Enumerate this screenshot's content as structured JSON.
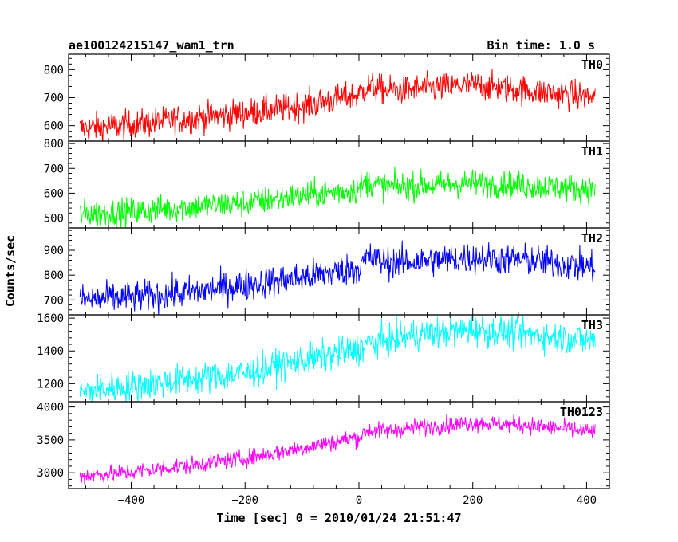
{
  "header": {
    "left_title": "ae100124215147_wam1_trn",
    "right_title": "Bin time: 1.0 s"
  },
  "chart_data": {
    "type": "line",
    "title": "ae100124215147_wam1_trn",
    "bin_time": "Bin time: 1.0 s",
    "xlabel": "Time [sec] 0 = 2010/01/24 21:51:47",
    "ylabel": "Counts/sec",
    "xlim": [
      -510,
      440
    ],
    "x_ticks": [
      -400,
      -200,
      0,
      200,
      400
    ],
    "x_step": 1,
    "grid": false,
    "panels": [
      {
        "name": "TH0",
        "color": "#ff0000",
        "ylim": [
          545,
          855
        ],
        "ticks": [
          600,
          700,
          800
        ],
        "x": [
          -490,
          -400,
          -300,
          -200,
          -100,
          0,
          15,
          50,
          100,
          200,
          300,
          415
        ],
        "y": [
          590,
          603,
          625,
          645,
          670,
          710,
          740,
          725,
          730,
          745,
          725,
          700
        ],
        "noise": 26
      },
      {
        "name": "TH1",
        "color": "#00ff00",
        "ylim": [
          460,
          810
        ],
        "ticks": [
          500,
          600,
          700,
          800
        ],
        "x": [
          -490,
          -400,
          -300,
          -200,
          -100,
          0,
          15,
          50,
          100,
          200,
          300,
          415
        ],
        "y": [
          515,
          525,
          545,
          560,
          590,
          615,
          645,
          625,
          630,
          640,
          630,
          615
        ],
        "noise": 28
      },
      {
        "name": "TH2",
        "color": "#0000ff",
        "ylim": [
          640,
          990
        ],
        "ticks": [
          700,
          800,
          900
        ],
        "x": [
          -490,
          -400,
          -300,
          -200,
          -100,
          0,
          15,
          50,
          100,
          200,
          300,
          415
        ],
        "y": [
          700,
          710,
          730,
          760,
          790,
          830,
          870,
          850,
          855,
          870,
          860,
          830
        ],
        "noise": 32
      },
      {
        "name": "TH3",
        "color": "#00ffff",
        "ylim": [
          1090,
          1620
        ],
        "ticks": [
          1200,
          1400,
          1600
        ],
        "x": [
          -490,
          -400,
          -300,
          -200,
          -100,
          0,
          15,
          50,
          100,
          200,
          300,
          415
        ],
        "y": [
          1150,
          1185,
          1225,
          1265,
          1340,
          1410,
          1445,
          1465,
          1500,
          1530,
          1500,
          1460
        ],
        "noise": 48
      },
      {
        "name": "TH0123",
        "color": "#ff00ff",
        "ylim": [
          2760,
          4080
        ],
        "ticks": [
          3000,
          3500,
          4000
        ],
        "x": [
          -490,
          -400,
          -300,
          -200,
          -100,
          0,
          15,
          50,
          100,
          200,
          300,
          415
        ],
        "y": [
          2950,
          3010,
          3110,
          3220,
          3380,
          3540,
          3640,
          3640,
          3690,
          3760,
          3720,
          3620
        ],
        "noise": 65
      }
    ]
  }
}
